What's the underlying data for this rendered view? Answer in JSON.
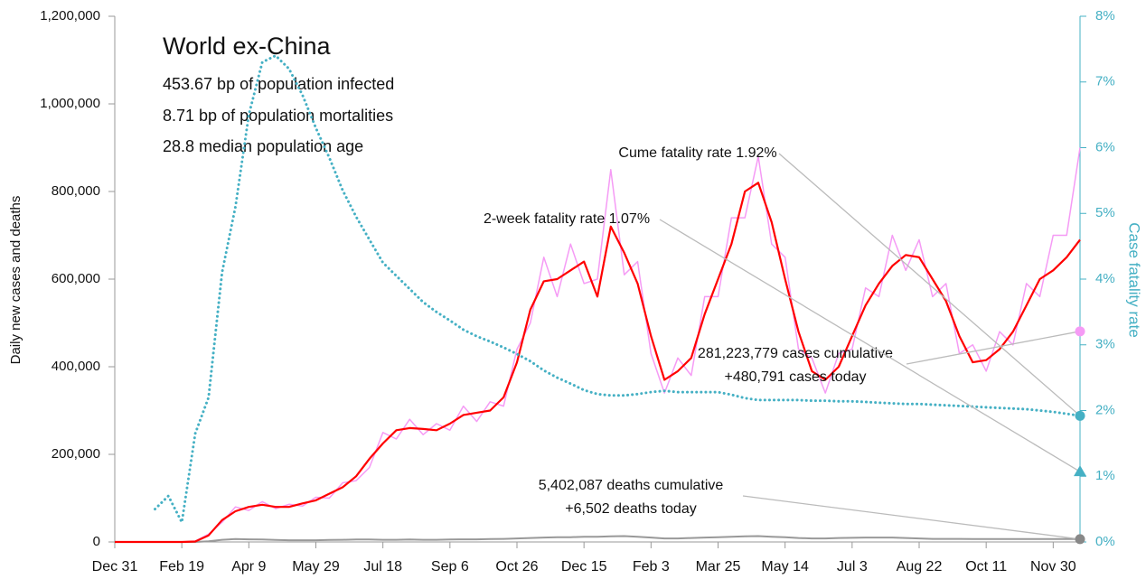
{
  "chart_data": {
    "type": "line",
    "ylabel": "Daily new cases and deaths",
    "y2label": "Case fatality rate",
    "categories": [
      "Dec 31",
      null,
      null,
      null,
      null,
      "Feb 19",
      null,
      null,
      null,
      null,
      "Apr 9",
      null,
      null,
      null,
      null,
      "May 29",
      null,
      null,
      null,
      null,
      "Jul 18",
      null,
      null,
      null,
      null,
      "Sep 6",
      null,
      null,
      null,
      null,
      "Oct 26",
      null,
      null,
      null,
      null,
      "Dec 15",
      null,
      null,
      null,
      null,
      "Feb 3",
      null,
      null,
      null,
      null,
      "Mar 25",
      null,
      null,
      null,
      null,
      "May 14",
      null,
      null,
      null,
      null,
      "Jul 3",
      null,
      null,
      null,
      null,
      "Aug 22",
      null,
      null,
      null,
      null,
      "Oct 11",
      null,
      null,
      null,
      null,
      "Nov 30",
      null,
      null
    ],
    "ylim": [
      0,
      1200000
    ],
    "yticks": [
      0,
      {
        "value": 200000,
        "label": "200,000"
      },
      {
        "value": 400000,
        "label": "400,000"
      },
      {
        "value": 600000,
        "label": "600,000"
      },
      {
        "value": 800000,
        "label": "800,000"
      },
      {
        "value": 1000000,
        "label": "1,000,000"
      },
      {
        "value": 1200000,
        "label": "1,200,000"
      }
    ],
    "y2lim": [
      0,
      8
    ],
    "y2ticks": [
      {
        "value": 0,
        "label": "0%"
      },
      {
        "value": 1,
        "label": "1%"
      },
      {
        "value": 2,
        "label": "2%"
      },
      {
        "value": 3,
        "label": "3%"
      },
      {
        "value": 4,
        "label": "4%"
      },
      {
        "value": 5,
        "label": "5%"
      },
      {
        "value": 6,
        "label": "6%"
      },
      {
        "value": 7,
        "label": "7%"
      },
      {
        "value": 8,
        "label": "8%"
      }
    ],
    "series": [
      {
        "color": "#f59bf5",
        "style": "solid",
        "width": 1.5,
        "values": [
          0,
          0,
          0,
          0,
          0,
          0,
          2000,
          18000,
          45000,
          80000,
          72000,
          92000,
          76000,
          86000,
          82000,
          102000,
          100000,
          135000,
          140000,
          170000,
          250000,
          235000,
          280000,
          245000,
          270000,
          255000,
          310000,
          275000,
          320000,
          310000,
          440000,
          500000,
          650000,
          560000,
          680000,
          590000,
          600000,
          850000,
          610000,
          640000,
          430000,
          340000,
          420000,
          380000,
          560000,
          560000,
          740000,
          740000,
          880000,
          680000,
          650000,
          440000,
          420000,
          340000,
          430000,
          440000,
          580000,
          560000,
          700000,
          620000,
          690000,
          560000,
          590000,
          430000,
          450000,
          390000,
          480000,
          450000,
          590000,
          560000,
          700000,
          700000,
          900000
        ]
      },
      {
        "color": "#999999",
        "style": "solid",
        "width": 2,
        "values": [
          0,
          0,
          0,
          0,
          0,
          0,
          100,
          1500,
          5000,
          6500,
          6000,
          5500,
          4500,
          4000,
          4000,
          4000,
          4500,
          5000,
          5500,
          5500,
          5000,
          5000,
          5500,
          5000,
          5000,
          5500,
          6000,
          6000,
          6500,
          7000,
          8000,
          9000,
          10000,
          11000,
          11000,
          12000,
          12000,
          13000,
          13500,
          12000,
          10000,
          8000,
          8000,
          9000,
          10000,
          11000,
          12000,
          13000,
          13500,
          12000,
          11000,
          9000,
          8000,
          8000,
          9000,
          9500,
          10000,
          10000,
          10000,
          9000,
          8000,
          7000,
          7000,
          7000,
          6500,
          6500,
          6500,
          6500,
          6500,
          6500,
          6500,
          7000,
          6500
        ]
      },
      {
        "color": "#ff0000",
        "style": "solid",
        "width": 2.2,
        "values": [
          0,
          0,
          0,
          0,
          0,
          0,
          1000,
          15000,
          50000,
          70000,
          80000,
          85000,
          80000,
          80000,
          88000,
          95000,
          110000,
          125000,
          150000,
          190000,
          225000,
          255000,
          260000,
          258000,
          255000,
          270000,
          290000,
          295000,
          300000,
          330000,
          410000,
          530000,
          595000,
          600000,
          620000,
          640000,
          560000,
          720000,
          660000,
          590000,
          470000,
          370000,
          390000,
          420000,
          520000,
          600000,
          680000,
          800000,
          820000,
          730000,
          600000,
          480000,
          390000,
          370000,
          400000,
          470000,
          540000,
          590000,
          630000,
          655000,
          650000,
          600000,
          550000,
          470000,
          410000,
          415000,
          440000,
          480000,
          540000,
          600000,
          620000,
          650000,
          690000
        ]
      },
      {
        "color": "#45b0c4",
        "style": "dotted",
        "width": 3,
        "axis": "y2",
        "values": [
          null,
          null,
          null,
          0.5,
          0.7,
          0.3,
          1.65,
          2.2,
          4.1,
          5.1,
          6.5,
          7.3,
          7.4,
          7.2,
          6.8,
          6.3,
          5.85,
          5.35,
          4.95,
          4.6,
          4.25,
          4.05,
          3.85,
          3.65,
          3.5,
          3.37,
          3.23,
          3.13,
          3.05,
          2.96,
          2.86,
          2.75,
          2.61,
          2.5,
          2.41,
          2.31,
          2.25,
          2.23,
          2.23,
          2.25,
          2.28,
          2.3,
          2.28,
          2.28,
          2.28,
          2.28,
          2.24,
          2.19,
          2.16,
          2.16,
          2.16,
          2.16,
          2.15,
          2.15,
          2.14,
          2.14,
          2.13,
          2.12,
          2.11,
          2.1,
          2.1,
          2.09,
          2.08,
          2.07,
          2.06,
          2.05,
          2.04,
          2.03,
          2.02,
          2.0,
          1.98,
          1.95,
          1.92
        ]
      }
    ],
    "markers": [
      {
        "value": 480791,
        "color": "#f59bf5",
        "shape": "circle"
      },
      {
        "value": 1.92,
        "axis": "y2",
        "color": "#45b0c4",
        "shape": "circle"
      },
      {
        "value": 1.07,
        "axis": "y2",
        "color": "#45b0c4",
        "shape": "triangle"
      },
      {
        "value": 6502,
        "color": "#888888",
        "shape": "circle"
      }
    ],
    "info": {
      "title": "World ex-China",
      "lines": [
        "453.67 bp of population infected",
        "8.71 bp of population mortalities",
        "28.8 median population age"
      ]
    },
    "annotations": [
      {
        "lines": [
          "281,223,779 cases cumulative",
          "+480,791 cases today"
        ],
        "marker": 0
      },
      {
        "lines": [
          "Cume fatality rate 1.92%"
        ],
        "marker": 1
      },
      {
        "lines": [
          "2-week fatality rate 1.07%"
        ],
        "marker": 2
      },
      {
        "lines": [
          "5,402,087 deaths cumulative",
          "+6,502 deaths today"
        ],
        "marker": 3
      }
    ]
  }
}
